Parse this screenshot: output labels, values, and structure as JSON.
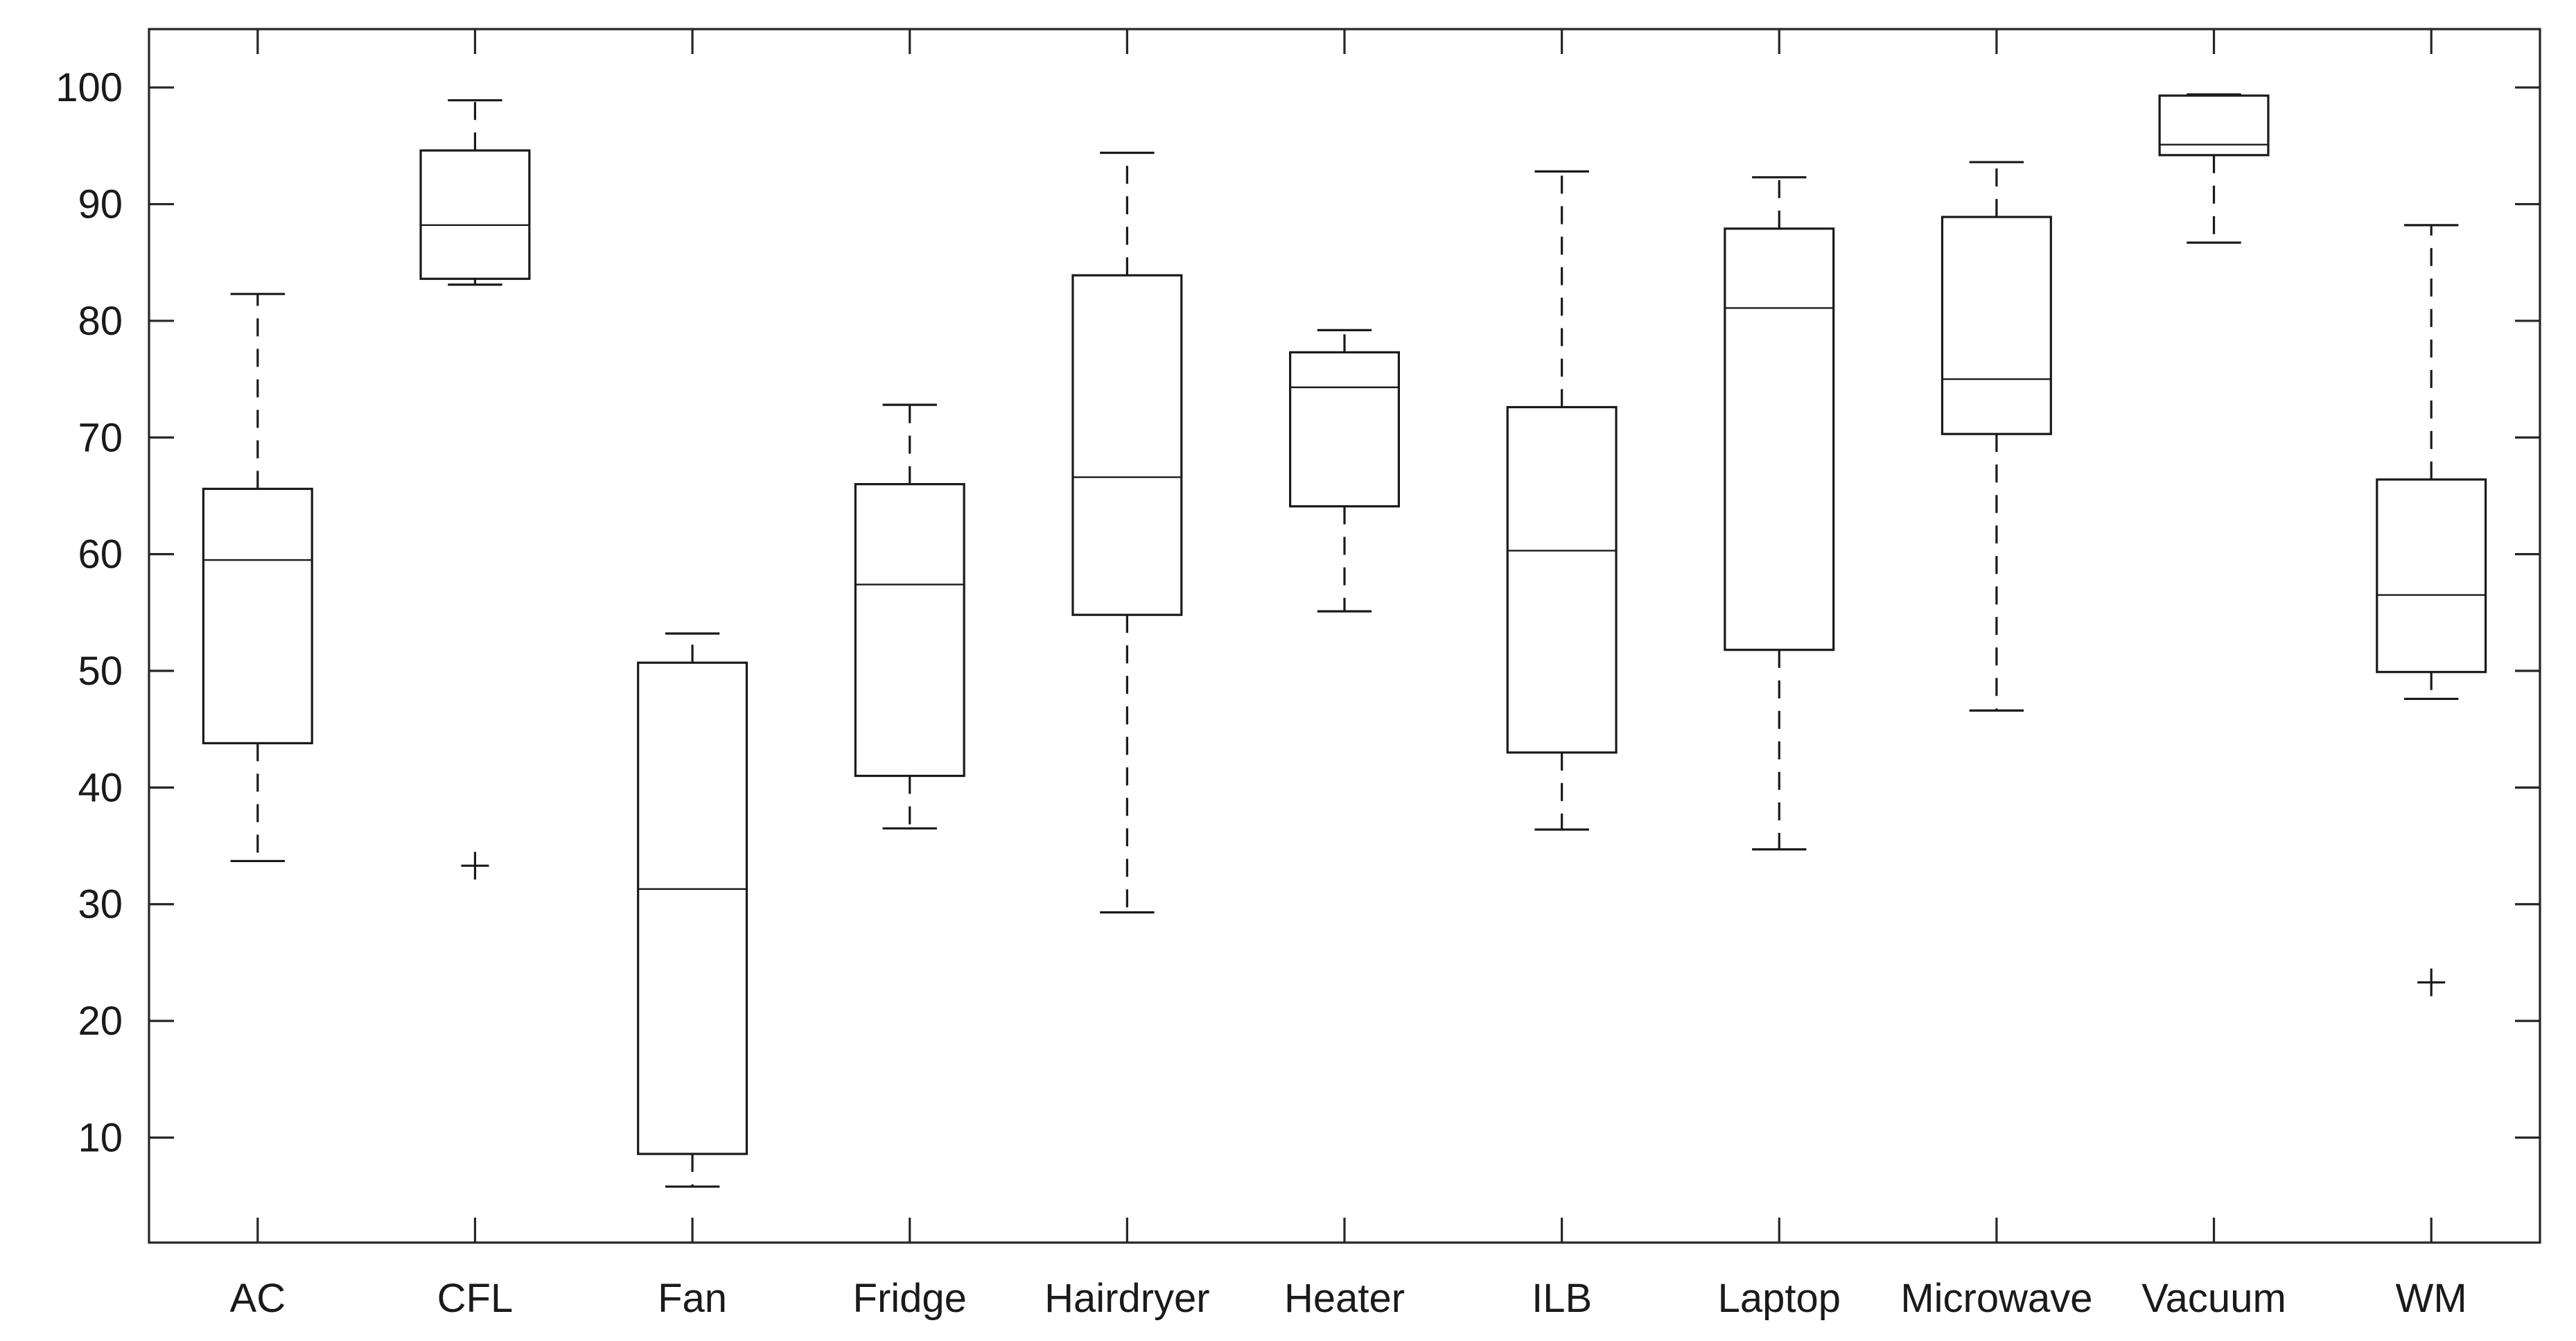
{
  "chart_data": {
    "type": "box",
    "title": "",
    "xlabel": "",
    "ylabel": "",
    "ylim": [
      1,
      105
    ],
    "yticks": [
      10,
      20,
      30,
      40,
      50,
      60,
      70,
      80,
      90,
      100
    ],
    "grid": false,
    "categories": [
      "AC",
      "CFL",
      "Fan",
      "Fridge",
      "Hairdryer",
      "Heater",
      "ILB",
      "Laptop",
      "Microwave",
      "Vacuum",
      "WM"
    ],
    "boxes": [
      {
        "category": "AC",
        "min": 33.7,
        "q1": 43.8,
        "median": 59.5,
        "q3": 65.6,
        "max": 82.3,
        "outliers": []
      },
      {
        "category": "CFL",
        "min": 83.1,
        "q1": 83.6,
        "median": 88.2,
        "q3": 94.6,
        "max": 98.9,
        "outliers": [
          33.3
        ]
      },
      {
        "category": "Fan",
        "min": 5.8,
        "q1": 8.6,
        "median": 31.3,
        "q3": 50.7,
        "max": 53.2,
        "outliers": []
      },
      {
        "category": "Fridge",
        "min": 36.5,
        "q1": 41.0,
        "median": 57.4,
        "q3": 66.0,
        "max": 72.8,
        "outliers": []
      },
      {
        "category": "Hairdryer",
        "min": 29.3,
        "q1": 54.8,
        "median": 66.6,
        "q3": 83.9,
        "max": 94.4,
        "outliers": []
      },
      {
        "category": "Heater",
        "min": 55.1,
        "q1": 64.1,
        "median": 74.3,
        "q3": 77.3,
        "max": 79.2,
        "outliers": []
      },
      {
        "category": "ILB",
        "min": 36.4,
        "q1": 43.0,
        "median": 60.3,
        "q3": 72.6,
        "max": 92.8,
        "outliers": []
      },
      {
        "category": "Laptop",
        "min": 34.7,
        "q1": 51.8,
        "median": 81.1,
        "q3": 87.9,
        "max": 92.3,
        "outliers": []
      },
      {
        "category": "Microwave",
        "min": 46.6,
        "q1": 70.3,
        "median": 75.0,
        "q3": 88.9,
        "max": 93.6,
        "outliers": []
      },
      {
        "category": "Vacuum",
        "min": 86.7,
        "q1": 94.2,
        "median": 95.1,
        "q3": 99.3,
        "max": 99.4,
        "outliers": []
      },
      {
        "category": "WM",
        "min": 47.6,
        "q1": 49.9,
        "median": 56.5,
        "q3": 66.4,
        "max": 88.2,
        "outliers": [
          23.3
        ]
      }
    ],
    "colors": {
      "box": "#1a1a1a",
      "axis": "#262626"
    }
  }
}
